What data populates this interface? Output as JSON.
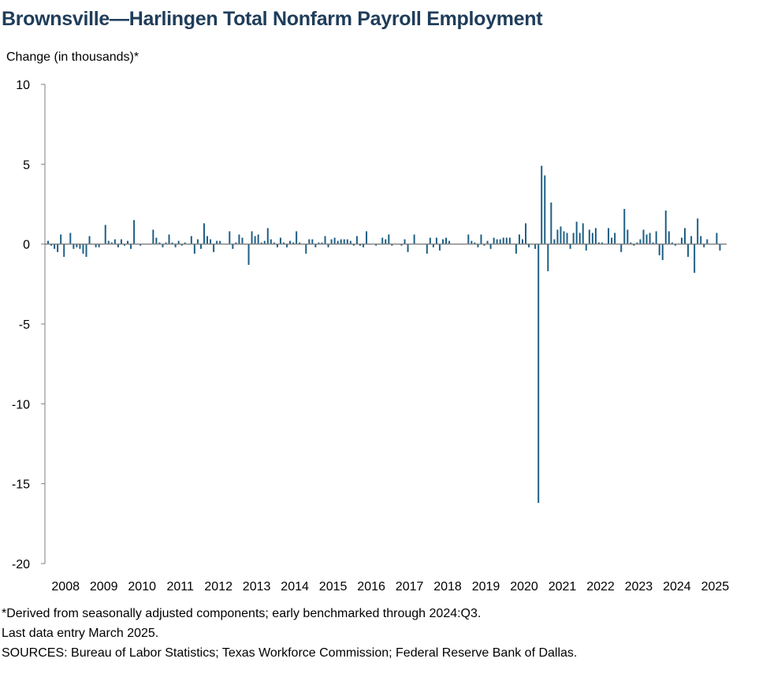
{
  "title": "Brownsville—Harlingen Total Nonfarm Payroll Employment",
  "ylabel": "Change (in thousands)*",
  "notes": {
    "footnote": "*Derived from seasonally adjusted components; early benchmarked through 2024:Q3.",
    "last_entry": "Last data entry March 2025.",
    "sources": "SOURCES: Bureau of Labor Statistics; Texas Workforce Commission; Federal Reserve Bank of Dallas."
  },
  "colors": {
    "bar": "#1f5f85",
    "title": "#1f3d5a",
    "axis": "#7f7f7f"
  },
  "chart_data": {
    "type": "bar",
    "xlabel": "",
    "ylabel": "Change (in thousands)*",
    "ylim": [
      -20,
      10
    ],
    "yticks": [
      10,
      5,
      0,
      -5,
      -10,
      -15,
      -20
    ],
    "ytick_labels": [
      "10",
      "5",
      "0",
      "-5",
      "-10",
      "-15",
      "-20"
    ],
    "xtick_labels": [
      "2008",
      "2009",
      "2010",
      "2011",
      "2012",
      "2013",
      "2014",
      "2015",
      "2016",
      "2017",
      "2018",
      "2019",
      "2020",
      "2021",
      "2022",
      "2023",
      "2024",
      "2025"
    ],
    "start_period": "2008-01",
    "frequency": "monthly",
    "values": [
      0.2,
      -0.1,
      -0.3,
      -0.5,
      0.6,
      -0.8,
      0.0,
      0.7,
      -0.3,
      -0.2,
      -0.3,
      -0.6,
      -0.8,
      0.5,
      0.0,
      -0.2,
      -0.2,
      0.0,
      1.2,
      0.2,
      0.1,
      0.3,
      -0.2,
      0.3,
      -0.1,
      0.2,
      -0.3,
      1.5,
      0.0,
      -0.1,
      0.0,
      0.0,
      0.0,
      0.9,
      0.4,
      0.1,
      -0.2,
      0.1,
      0.6,
      0.1,
      -0.2,
      0.2,
      -0.1,
      0.1,
      0.0,
      0.5,
      -0.6,
      0.3,
      -0.3,
      1.3,
      0.5,
      0.3,
      -0.5,
      0.2,
      0.2,
      0.0,
      0.0,
      0.8,
      -0.3,
      0.1,
      0.6,
      0.4,
      0.0,
      -1.3,
      0.8,
      0.5,
      0.6,
      0.1,
      0.2,
      1.0,
      0.3,
      0.1,
      -0.2,
      0.4,
      0.1,
      -0.2,
      0.2,
      0.1,
      0.8,
      0.1,
      0.0,
      -0.6,
      0.3,
      0.3,
      -0.2,
      0.1,
      0.1,
      0.5,
      -0.2,
      0.3,
      0.4,
      0.2,
      0.3,
      0.3,
      0.3,
      0.2,
      -0.1,
      0.5,
      -0.1,
      -0.2,
      0.8,
      0.0,
      0.0,
      -0.1,
      0.0,
      0.4,
      0.3,
      0.6,
      -0.1,
      0.0,
      0.0,
      -0.1,
      0.3,
      -0.5,
      0.0,
      0.6,
      0.0,
      0.0,
      0.0,
      -0.6,
      0.4,
      -0.2,
      0.4,
      -0.4,
      0.3,
      0.4,
      0.2,
      0.0,
      0.0,
      0.0,
      0.0,
      0.0,
      0.6,
      0.2,
      0.1,
      -0.2,
      0.6,
      -0.1,
      0.2,
      -0.3,
      0.4,
      0.3,
      0.3,
      0.4,
      0.4,
      0.4,
      0.0,
      -0.6,
      0.6,
      0.3,
      1.3,
      -0.2,
      0.0,
      -0.3,
      -16.2,
      4.9,
      4.3,
      -1.7,
      2.6,
      0.3,
      0.9,
      1.1,
      0.8,
      0.7,
      -0.3,
      0.7,
      1.4,
      0.7,
      1.3,
      -0.4,
      0.9,
      0.7,
      1.0,
      0.1,
      0.1,
      0.0,
      1.0,
      0.4,
      0.7,
      0.0,
      -0.5,
      2.2,
      0.9,
      0.1,
      -0.1,
      0.1,
      0.3,
      0.9,
      0.6,
      0.7,
      0.1,
      0.8,
      -0.7,
      -1.0,
      2.1,
      0.8,
      0.1,
      -0.1,
      0.0,
      0.4,
      1.0,
      -0.8,
      0.5,
      -1.8,
      1.6,
      0.5,
      -0.2,
      0.3,
      0.0,
      0.0,
      0.7,
      -0.4,
      0.0
    ]
  }
}
